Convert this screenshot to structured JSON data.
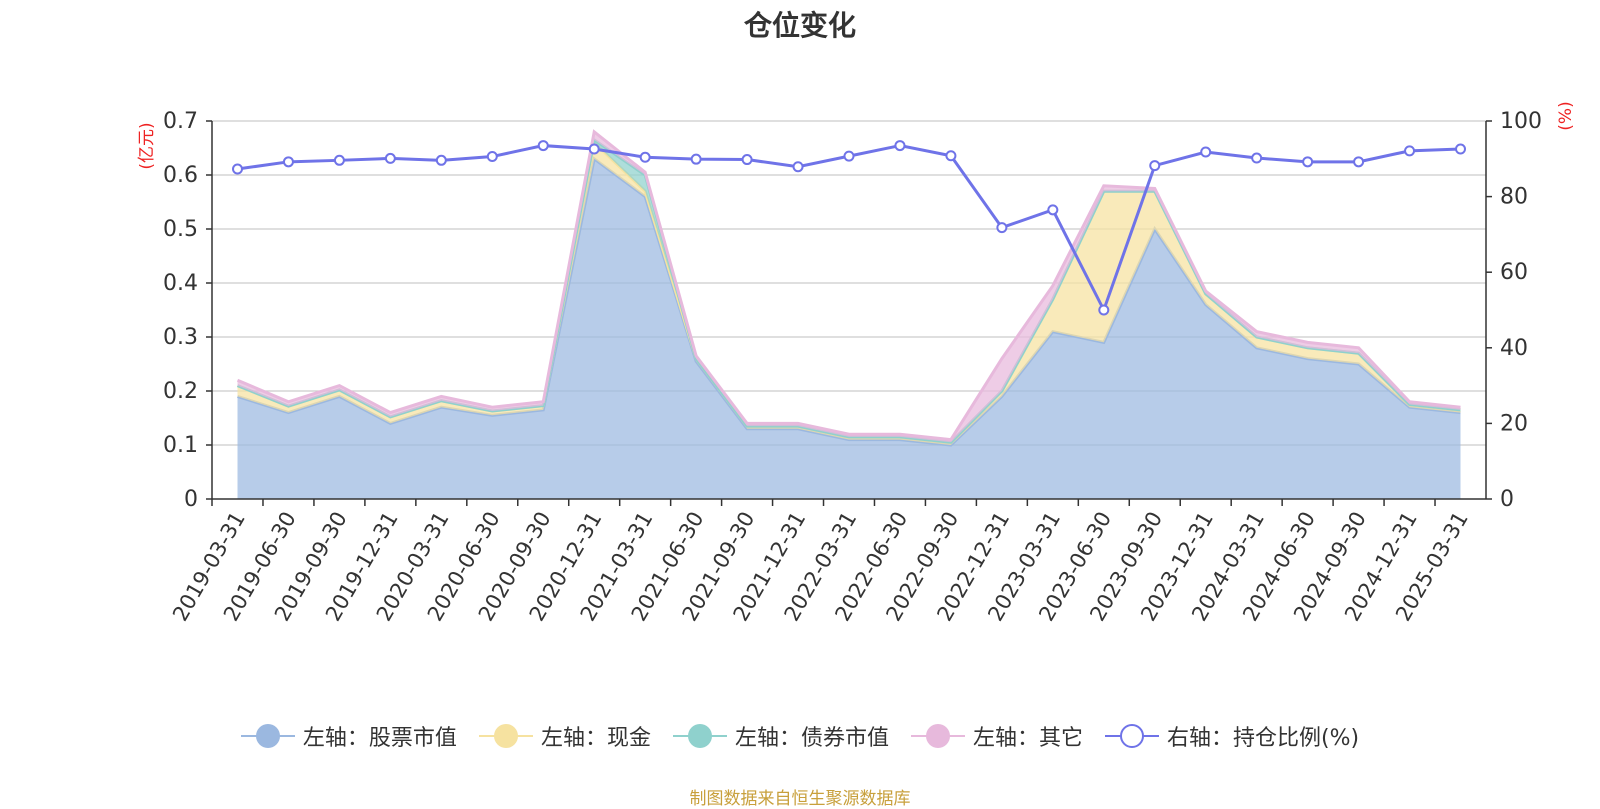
{
  "chart_data": {
    "type": "area",
    "title": "仓位变化",
    "source_note": "制图数据来自恒生聚源数据库",
    "left_axis_unit": "(亿元)",
    "right_axis_unit": "(%)",
    "left_ylim": [
      0,
      0.7
    ],
    "left_ticks": [
      "0",
      "0.1",
      "0.2",
      "0.3",
      "0.4",
      "0.5",
      "0.6",
      "0.7"
    ],
    "right_ylim": [
      0,
      100
    ],
    "right_ticks": [
      "0",
      "20",
      "40",
      "60",
      "80",
      "100"
    ],
    "grid": true,
    "legend_position": "bottom",
    "x": [
      "2019-03-31",
      "2019-06-30",
      "2019-09-30",
      "2019-12-31",
      "2020-03-31",
      "2020-06-30",
      "2020-09-30",
      "2020-12-31",
      "2021-03-31",
      "2021-06-30",
      "2021-09-30",
      "2021-12-31",
      "2022-03-31",
      "2022-06-30",
      "2022-09-30",
      "2022-12-31",
      "2023-03-31",
      "2023-06-30",
      "2023-09-30",
      "2023-12-31",
      "2024-03-31",
      "2024-06-30",
      "2024-09-30",
      "2024-12-31",
      "2025-03-31"
    ],
    "series": [
      {
        "name": "左轴：股票市值",
        "axis": "left",
        "stacked": true,
        "color": "#9bb8e0",
        "values": [
          0.19,
          0.16,
          0.19,
          0.14,
          0.17,
          0.155,
          0.165,
          0.63,
          0.56,
          0.255,
          0.13,
          0.13,
          0.11,
          0.11,
          0.1,
          0.19,
          0.31,
          0.29,
          0.5,
          0.36,
          0.28,
          0.26,
          0.25,
          0.17,
          0.16
        ]
      },
      {
        "name": "左轴：现金",
        "axis": "left",
        "stacked": true,
        "color": "#f6e2a0",
        "values": [
          0.02,
          0.012,
          0.012,
          0.012,
          0.012,
          0.008,
          0.008,
          0.03,
          0.01,
          0.005,
          0.005,
          0.005,
          0.005,
          0.005,
          0.005,
          0.01,
          0.06,
          0.28,
          0.07,
          0.02,
          0.02,
          0.02,
          0.02,
          0.005,
          0.005
        ]
      },
      {
        "name": "左轴：债券市值",
        "axis": "left",
        "stacked": true,
        "color": "#8fd1cd",
        "values": [
          0,
          0,
          0,
          0,
          0,
          0,
          0,
          0.005,
          0.03,
          0,
          0,
          0,
          0,
          0,
          0,
          0,
          0,
          0,
          0,
          0,
          0,
          0,
          0,
          0,
          0
        ]
      },
      {
        "name": "左轴：其它",
        "axis": "left",
        "stacked": true,
        "color": "#e7b9dc",
        "values": [
          0.01,
          0.008,
          0.008,
          0.008,
          0.008,
          0.007,
          0.007,
          0.015,
          0.005,
          0.005,
          0.005,
          0.005,
          0.005,
          0.005,
          0.005,
          0.06,
          0.025,
          0.01,
          0.005,
          0.005,
          0.01,
          0.01,
          0.01,
          0.005,
          0.005
        ]
      },
      {
        "name": "右轴：持仓比例(%)",
        "axis": "right",
        "stacked": false,
        "color": "#6f73e8",
        "values": [
          87.3,
          89.2,
          89.6,
          90.1,
          89.6,
          90.6,
          93.5,
          92.6,
          90.4,
          89.9,
          89.8,
          87.9,
          90.7,
          93.5,
          90.8,
          71.8,
          76.5,
          50.0,
          88.2,
          91.8,
          90.2,
          89.2,
          89.2,
          92.1,
          92.6
        ]
      }
    ]
  }
}
